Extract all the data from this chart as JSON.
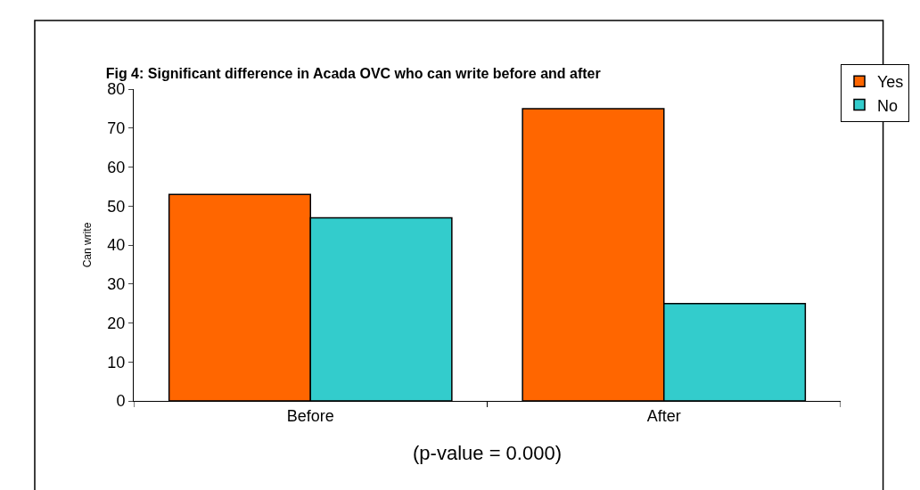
{
  "chart_data": {
    "type": "bar",
    "title": "Fig 4: Significant difference in Acada OVC who can write before and after",
    "xlabel": "(p-value = 0.000)",
    "ylabel": "Can write",
    "categories": [
      "Before",
      "After"
    ],
    "series": [
      {
        "name": "Yes",
        "color": "#ff6600",
        "values": [
          53,
          75
        ]
      },
      {
        "name": "No",
        "color": "#33cccc",
        "values": [
          47,
          25
        ]
      }
    ],
    "ylim": [
      0,
      80
    ],
    "yticks": [
      0,
      10,
      20,
      30,
      40,
      50,
      60,
      70,
      80
    ],
    "grid": false,
    "legend": "top right"
  }
}
